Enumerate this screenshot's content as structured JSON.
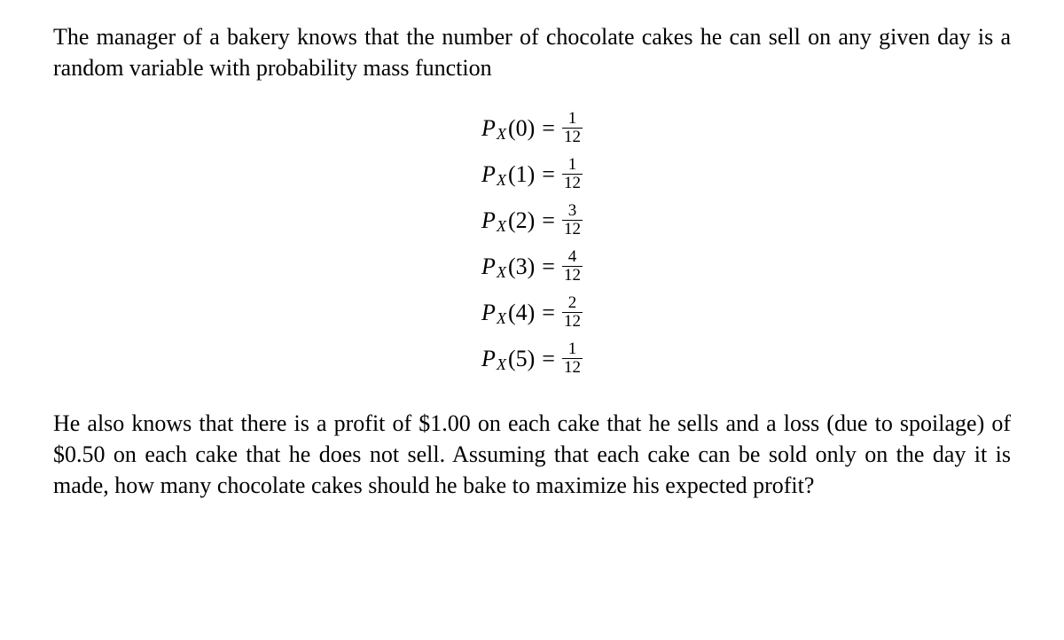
{
  "intro": "The manager of a bakery knows that the number of chocolate cakes he can sell on any given day is a random variable with probability mass function",
  "equations": [
    {
      "func": "P",
      "sub": "X",
      "arg": "(0)",
      "eq": "=",
      "num": "1",
      "den": "12"
    },
    {
      "func": "P",
      "sub": "X",
      "arg": "(1)",
      "eq": "=",
      "num": "1",
      "den": "12"
    },
    {
      "func": "P",
      "sub": "X",
      "arg": "(2)",
      "eq": "=",
      "num": "3",
      "den": "12"
    },
    {
      "func": "P",
      "sub": "X",
      "arg": "(3)",
      "eq": "=",
      "num": "4",
      "den": "12"
    },
    {
      "func": "P",
      "sub": "X",
      "arg": "(4)",
      "eq": "=",
      "num": "2",
      "den": "12"
    },
    {
      "func": "P",
      "sub": "X",
      "arg": "(5)",
      "eq": "=",
      "num": "1",
      "den": "12"
    }
  ],
  "outro": "He also knows that there is a profit of $1.00 on each cake that he sells and a loss (due to spoilage) of $0.50 on each cake that he does not sell. Assuming that each cake can be sold only on the day it is made, how many chocolate cakes should he bake to maximize his expected profit?"
}
